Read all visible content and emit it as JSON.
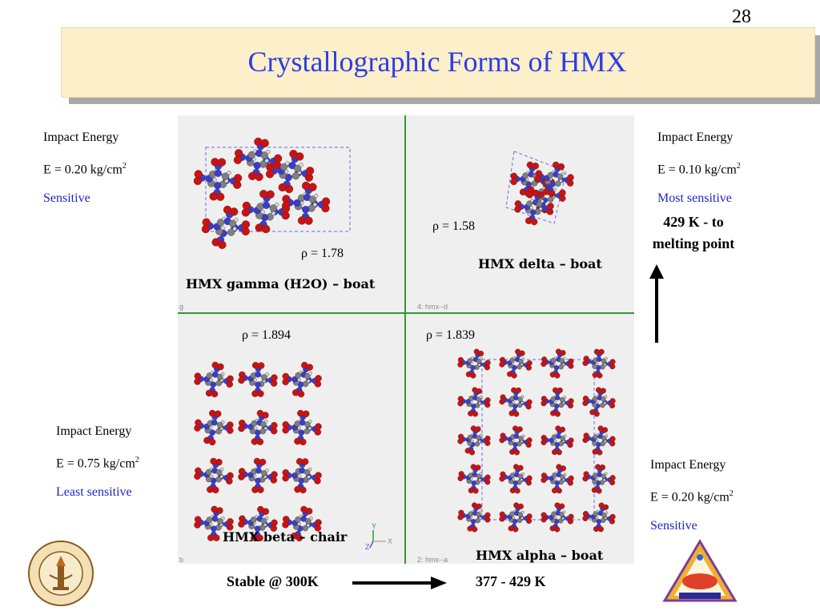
{
  "slide": {
    "page_number": "28",
    "title": "Crystallographic Forms of HMX"
  },
  "gamma": {
    "impact": "Impact Energy",
    "energy": "E = 0.20  kg/cm",
    "exp": "2",
    "sens": "Sensitive",
    "rho": "ρ = 1.78",
    "caption": "HMX gamma (H2O) – boat",
    "tag": "g"
  },
  "delta": {
    "impact": "Impact Energy",
    "energy": "E = 0.10  kg/cm",
    "exp": "2",
    "sens": "Most sensitive",
    "rho": "ρ = 1.58",
    "caption": "HMX delta – boat",
    "tag": "4: hmx--d",
    "temp1": "429 K - to",
    "temp2": "melting point"
  },
  "beta": {
    "impact": "Impact Energy",
    "energy": "E = 0.75 kg/cm",
    "exp": "2",
    "sens": "Least sensitive",
    "rho": "ρ = 1.894",
    "caption": "HMX beta – chair",
    "tag": "b",
    "axis_y": "Y",
    "axis_x": "X",
    "axis_z": "Z"
  },
  "alpha": {
    "impact": "Impact Energy",
    "energy": "E = 0.20  kg/cm",
    "exp": "2",
    "sens": "Sensitive",
    "rho": "ρ = 1.839",
    "caption": "HMX alpha – boat",
    "tag": "2: hmx--a"
  },
  "bottom": {
    "stable": "Stable @ 300K",
    "range": "377 - 429 K"
  },
  "colors": {
    "title": "#2a3de8",
    "sensitivity": "#1f23c8",
    "title_bg": "#fdefc9",
    "divider": "#2f9a2f",
    "oxygen": "#cc1111",
    "nitrogen": "#3b3bd0",
    "carbon": "#808080",
    "hydrogen": "#d8d8d8"
  }
}
